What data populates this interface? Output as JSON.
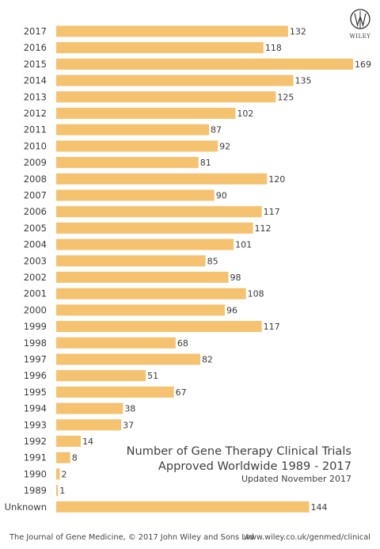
{
  "chart_data": {
    "type": "bar",
    "orientation": "horizontal",
    "categories": [
      "2017",
      "2016",
      "2015",
      "2014",
      "2013",
      "2012",
      "2011",
      "2010",
      "2009",
      "2008",
      "2007",
      "2006",
      "2005",
      "2004",
      "2003",
      "2002",
      "2001",
      "2000",
      "1999",
      "1998",
      "1997",
      "1996",
      "1995",
      "1994",
      "1993",
      "1992",
      "1991",
      "1990",
      "1989",
      "Unknown"
    ],
    "values": [
      132,
      118,
      169,
      135,
      125,
      102,
      87,
      92,
      81,
      120,
      90,
      117,
      112,
      101,
      85,
      98,
      108,
      96,
      117,
      68,
      82,
      51,
      67,
      38,
      37,
      14,
      8,
      2,
      1,
      144
    ],
    "title_line1": "Number of Gene Therapy Clinical Trials",
    "title_line2": "Approved Worldwide 1989 - 2017",
    "subtitle": "Updated November 2017",
    "xlabel": "",
    "ylabel": "",
    "xlim": [
      0,
      169
    ],
    "grid": false,
    "bar_color": "#f5c26f"
  },
  "footer": {
    "left": "The Journal of Gene Medicine, © 2017 John Wiley and Sons Ltd",
    "right": "www.wiley.co.uk/genmed/clinical"
  },
  "logo": {
    "text": "WILEY"
  }
}
